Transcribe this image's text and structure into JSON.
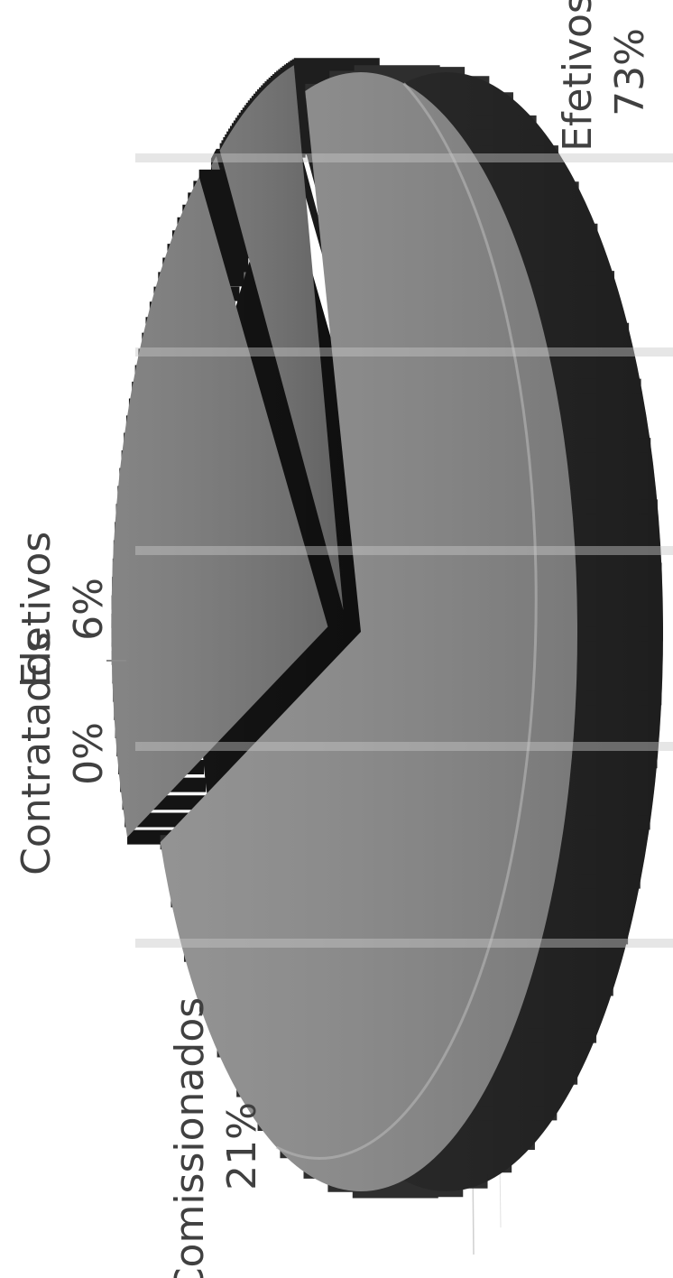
{
  "chart_data": {
    "type": "pie",
    "title": "",
    "categories": [
      "Efetivos",
      "Comissionados",
      "Contratados",
      "Eletivos"
    ],
    "values": [
      73,
      21,
      0,
      6
    ],
    "labels": [
      "73%",
      "21%",
      "0%",
      "6%"
    ],
    "style": "3d-exploded",
    "colors": [
      "#8a8a8a",
      "#7a7a7a",
      "#666666",
      "#6e6e6e"
    ],
    "side_colors": [
      "#2e2e2e",
      "#141414",
      "#1a1a1a",
      "#1e1e1e"
    ],
    "legend": "none"
  }
}
